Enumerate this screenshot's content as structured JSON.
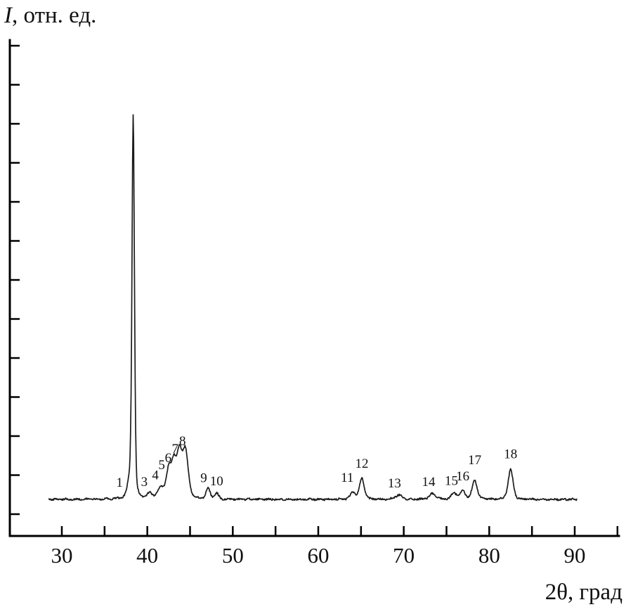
{
  "chart_data": {
    "type": "line",
    "kind": "xrd-diffraction-pattern",
    "title": "",
    "xlabel": "2θ, град",
    "ylabel": "I, отн. ед.",
    "ylabel_italic_part": "I",
    "ylabel_rest": ", отн. ед.",
    "xlim": [
      30,
      95
    ],
    "x_major_ticks": [
      "30",
      "40",
      "50",
      "60",
      "70",
      "80",
      "90"
    ],
    "x_major_tick_values": [
      30,
      40,
      50,
      60,
      70,
      80,
      90
    ],
    "x_minor_tick_step": 5,
    "y_ticks_unlabeled": 13,
    "y_axis_numeric_labels": "none (relative units)",
    "line_color": "#1c1c1c",
    "baseline_rel_intensity": 0.0,
    "peaks": [
      {
        "label": "1",
        "two_theta": 37.9,
        "rel_intensity": 0.035,
        "width_deg": 0.25,
        "label_dx": -14,
        "label_dy": 10
      },
      {
        "label": "",
        "two_theta": 38.35,
        "rel_intensity": 1.0,
        "width_deg": 0.15,
        "label_dx": 0,
        "label_dy": 0
      },
      {
        "label": "3",
        "two_theta": 40.3,
        "rel_intensity": 0.015,
        "width_deg": 0.3,
        "label_dx": -8,
        "label_dy": -2
      },
      {
        "label": "4",
        "two_theta": 41.6,
        "rel_intensity": 0.03,
        "width_deg": 0.35,
        "label_dx": -8,
        "label_dy": -3
      },
      {
        "label": "5",
        "two_theta": 42.5,
        "rel_intensity": 0.07,
        "width_deg": 0.3,
        "label_dx": -10,
        "label_dy": 4
      },
      {
        "label": "6",
        "two_theta": 43.1,
        "rel_intensity": 0.09,
        "width_deg": 0.3,
        "label_dx": -8,
        "label_dy": 5
      },
      {
        "label": "7",
        "two_theta": 43.75,
        "rel_intensity": 0.11,
        "width_deg": 0.3,
        "label_dx": -6,
        "label_dy": 3
      },
      {
        "label": "8",
        "two_theta": 44.45,
        "rel_intensity": 0.125,
        "width_deg": 0.35,
        "label_dx": -4,
        "label_dy": 0
      },
      {
        "label": "9",
        "two_theta": 47.1,
        "rel_intensity": 0.028,
        "width_deg": 0.25,
        "label_dx": -6,
        "label_dy": 0
      },
      {
        "label": "10",
        "two_theta": 48.1,
        "rel_intensity": 0.015,
        "width_deg": 0.25,
        "label_dx": 0,
        "label_dy": -3
      },
      {
        "label": "11",
        "two_theta": 64.05,
        "rel_intensity": 0.018,
        "width_deg": 0.3,
        "label_dx": -8,
        "label_dy": -6
      },
      {
        "label": "12",
        "two_theta": 65.1,
        "rel_intensity": 0.055,
        "width_deg": 0.3,
        "label_dx": 0,
        "label_dy": -6
      },
      {
        "label": "13",
        "two_theta": 69.4,
        "rel_intensity": 0.011,
        "width_deg": 0.4,
        "label_dx": -6,
        "label_dy": -2
      },
      {
        "label": "14",
        "two_theta": 73.4,
        "rel_intensity": 0.015,
        "width_deg": 0.4,
        "label_dx": -6,
        "label_dy": -2
      },
      {
        "label": "15",
        "two_theta": 75.9,
        "rel_intensity": 0.016,
        "width_deg": 0.35,
        "label_dx": -4,
        "label_dy": -3
      },
      {
        "label": "16",
        "two_theta": 76.9,
        "rel_intensity": 0.022,
        "width_deg": 0.3,
        "label_dx": 0,
        "label_dy": -6
      },
      {
        "label": "17",
        "two_theta": 78.3,
        "rel_intensity": 0.05,
        "width_deg": 0.3,
        "label_dx": 0,
        "label_dy": -14
      },
      {
        "label": "18",
        "two_theta": 82.5,
        "rel_intensity": 0.078,
        "width_deg": 0.3,
        "label_dx": 0,
        "label_dy": -7
      }
    ]
  }
}
